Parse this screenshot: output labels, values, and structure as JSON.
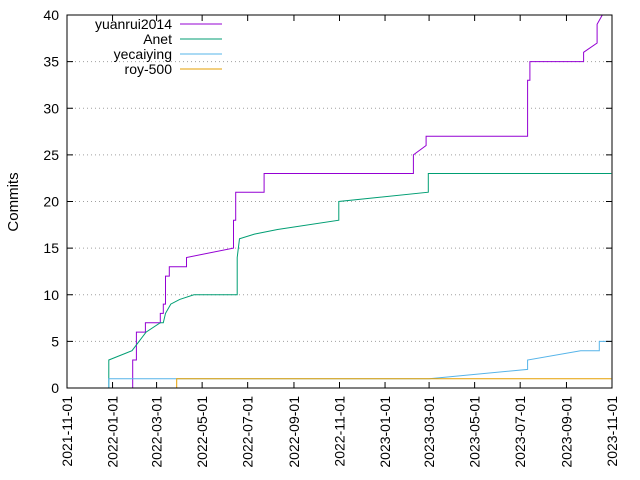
{
  "chart_data": {
    "type": "line",
    "title": "",
    "xlabel": "",
    "ylabel": "Commits",
    "ylim": [
      0,
      40
    ],
    "xlim": [
      "2021-11-01",
      "2023-11-01"
    ],
    "y_ticks": [
      "0",
      "5",
      "10",
      "15",
      "20",
      "25",
      "30",
      "35",
      "40"
    ],
    "x_ticks": [
      "2021-11-01",
      "2022-01-01",
      "2022-03-01",
      "2022-05-01",
      "2022-07-01",
      "2022-09-01",
      "2022-11-01",
      "2023-01-01",
      "2023-03-01",
      "2023-05-01",
      "2023-07-01",
      "2023-09-01",
      "2023-11-01"
    ],
    "grid": "horizontal dotted",
    "legend_position": "top-left",
    "series": [
      {
        "name": "yuanrui2014",
        "color": "#9400d3",
        "points": [
          [
            "2022-01-28",
            0
          ],
          [
            "2022-01-28",
            3
          ],
          [
            "2022-02-02",
            3
          ],
          [
            "2022-02-02",
            6
          ],
          [
            "2022-02-14",
            6
          ],
          [
            "2022-02-14",
            7
          ],
          [
            "2022-03-06",
            7
          ],
          [
            "2022-03-06",
            8
          ],
          [
            "2022-03-10",
            8
          ],
          [
            "2022-03-10",
            9
          ],
          [
            "2022-03-13",
            9
          ],
          [
            "2022-03-13",
            12
          ],
          [
            "2022-03-18",
            12
          ],
          [
            "2022-03-18",
            13
          ],
          [
            "2022-04-10",
            13
          ],
          [
            "2022-04-10",
            14
          ],
          [
            "2022-06-12",
            15
          ],
          [
            "2022-06-12",
            18
          ],
          [
            "2022-06-15",
            18
          ],
          [
            "2022-06-15",
            21
          ],
          [
            "2022-07-23",
            21
          ],
          [
            "2022-07-23",
            23
          ],
          [
            "2023-02-08",
            23
          ],
          [
            "2023-02-08",
            25
          ],
          [
            "2023-02-25",
            26
          ],
          [
            "2023-02-25",
            27
          ],
          [
            "2023-07-11",
            27
          ],
          [
            "2023-07-11",
            33
          ],
          [
            "2023-07-14",
            33
          ],
          [
            "2023-07-14",
            35
          ],
          [
            "2023-09-24",
            35
          ],
          [
            "2023-09-24",
            36
          ],
          [
            "2023-10-12",
            37
          ],
          [
            "2023-10-12",
            39
          ],
          [
            "2023-10-19",
            40
          ]
        ]
      },
      {
        "name": "Anet",
        "color": "#009e73",
        "points": [
          [
            "2021-12-27",
            0
          ],
          [
            "2021-12-27",
            3
          ],
          [
            "2022-01-27",
            4
          ],
          [
            "2022-02-15",
            6
          ],
          [
            "2022-03-06",
            7
          ],
          [
            "2022-03-10",
            7
          ],
          [
            "2022-03-13",
            8
          ],
          [
            "2022-03-20",
            9
          ],
          [
            "2022-04-01",
            9.5
          ],
          [
            "2022-04-20",
            10
          ],
          [
            "2022-06-17",
            10
          ],
          [
            "2022-06-17",
            14
          ],
          [
            "2022-06-20",
            16
          ],
          [
            "2022-07-10",
            16.5
          ],
          [
            "2022-08-10",
            17
          ],
          [
            "2022-10-31",
            18
          ],
          [
            "2022-10-31",
            20
          ],
          [
            "2023-02-28",
            21
          ],
          [
            "2023-02-28",
            23
          ],
          [
            "2023-10-31",
            23
          ]
        ]
      },
      {
        "name": "yecaiying",
        "color": "#56b4e9",
        "points": [
          [
            "2021-12-27",
            0
          ],
          [
            "2021-12-27",
            1
          ],
          [
            "2023-03-01",
            1
          ],
          [
            "2023-07-11",
            2
          ],
          [
            "2023-07-11",
            3
          ],
          [
            "2023-09-20",
            4
          ],
          [
            "2023-10-15",
            4
          ],
          [
            "2023-10-15",
            5
          ],
          [
            "2023-10-31",
            5
          ]
        ]
      },
      {
        "name": "roy-500",
        "color": "#e69f00",
        "points": [
          [
            "2022-03-28",
            0
          ],
          [
            "2022-03-28",
            1
          ],
          [
            "2023-10-31",
            1
          ]
        ]
      }
    ]
  }
}
